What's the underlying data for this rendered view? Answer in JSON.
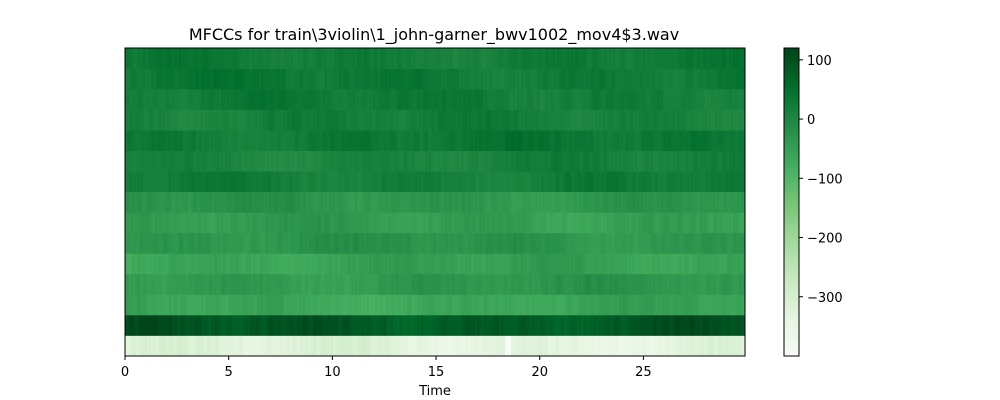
{
  "chart_data": {
    "type": "heatmap",
    "title": "MFCCs for train\\3violin\\1_john-garner_bwv1002_mov4$3.wav",
    "xlabel": "Time",
    "ylabel": "",
    "xlim": [
      0,
      29.9
    ],
    "xticks": [
      0,
      5,
      10,
      15,
      20,
      25
    ],
    "xtick_labels": [
      "0",
      "5",
      "10",
      "15",
      "20",
      "25"
    ],
    "yticks_shown": false,
    "n_coefficients": 15,
    "colormap": "Greens",
    "colorbar": {
      "vmin": -400,
      "vmax": 120,
      "ticks": [
        100,
        0,
        -100,
        -200,
        -300
      ],
      "tick_labels": [
        "100",
        "0",
        "−100",
        "−200",
        "−300"
      ]
    },
    "row_mean_values_bottom_to_top": [
      -330,
      90,
      -60,
      -35,
      -55,
      -30,
      -45,
      -30,
      20,
      10,
      30,
      15,
      25,
      30,
      25
    ],
    "grid": false
  }
}
